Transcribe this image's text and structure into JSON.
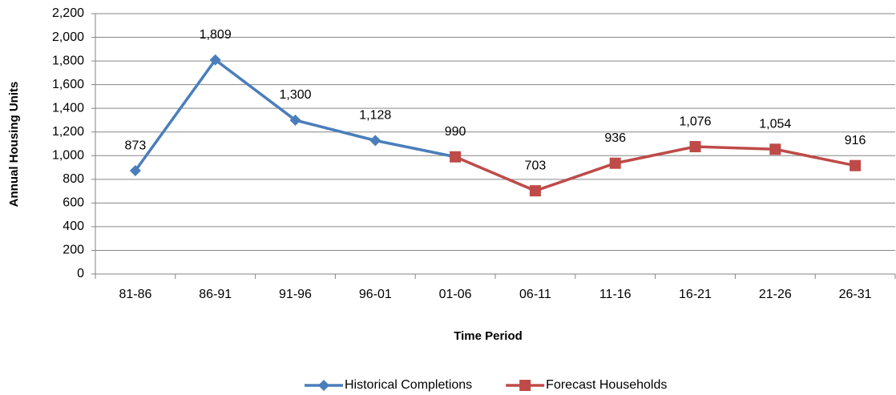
{
  "chart_data": {
    "type": "line",
    "x_label": "Time Period",
    "y_label": "Annual Housing Units",
    "categories": [
      "81-86",
      "86-91",
      "91-96",
      "96-01",
      "01-06",
      "06-11",
      "11-16",
      "16-21",
      "21-26",
      "26-31"
    ],
    "series": [
      {
        "name": "Historical Completions",
        "color": "#4a7ebb",
        "marker": "diamond",
        "values": [
          873,
          1809,
          1300,
          1128,
          990,
          null,
          null,
          null,
          null,
          null
        ],
        "value_labels": [
          "873",
          "1,809",
          "1,300",
          "1,128",
          null,
          null,
          null,
          null,
          null,
          null
        ]
      },
      {
        "name": "Forecast Households",
        "color": "#be4b48",
        "marker": "square",
        "values": [
          null,
          null,
          null,
          null,
          990,
          703,
          936,
          1076,
          1054,
          916
        ],
        "value_labels": [
          null,
          null,
          null,
          null,
          "990",
          "703",
          "936",
          "1,076",
          "1,054",
          "916"
        ]
      }
    ],
    "ylim": [
      0,
      2200
    ],
    "yticks": [
      0,
      200,
      400,
      600,
      800,
      {
        "value": 1000,
        "label": "1,000"
      },
      {
        "value": 1200,
        "label": "1,200"
      },
      {
        "value": 1400,
        "label": "1,400"
      },
      {
        "value": 1600,
        "label": "1,600"
      },
      {
        "value": 1800,
        "label": "1,800"
      },
      {
        "value": 2000,
        "label": "2,000"
      },
      {
        "value": 2200,
        "label": "2,200"
      }
    ],
    "grid": true,
    "legend": "bottom"
  }
}
